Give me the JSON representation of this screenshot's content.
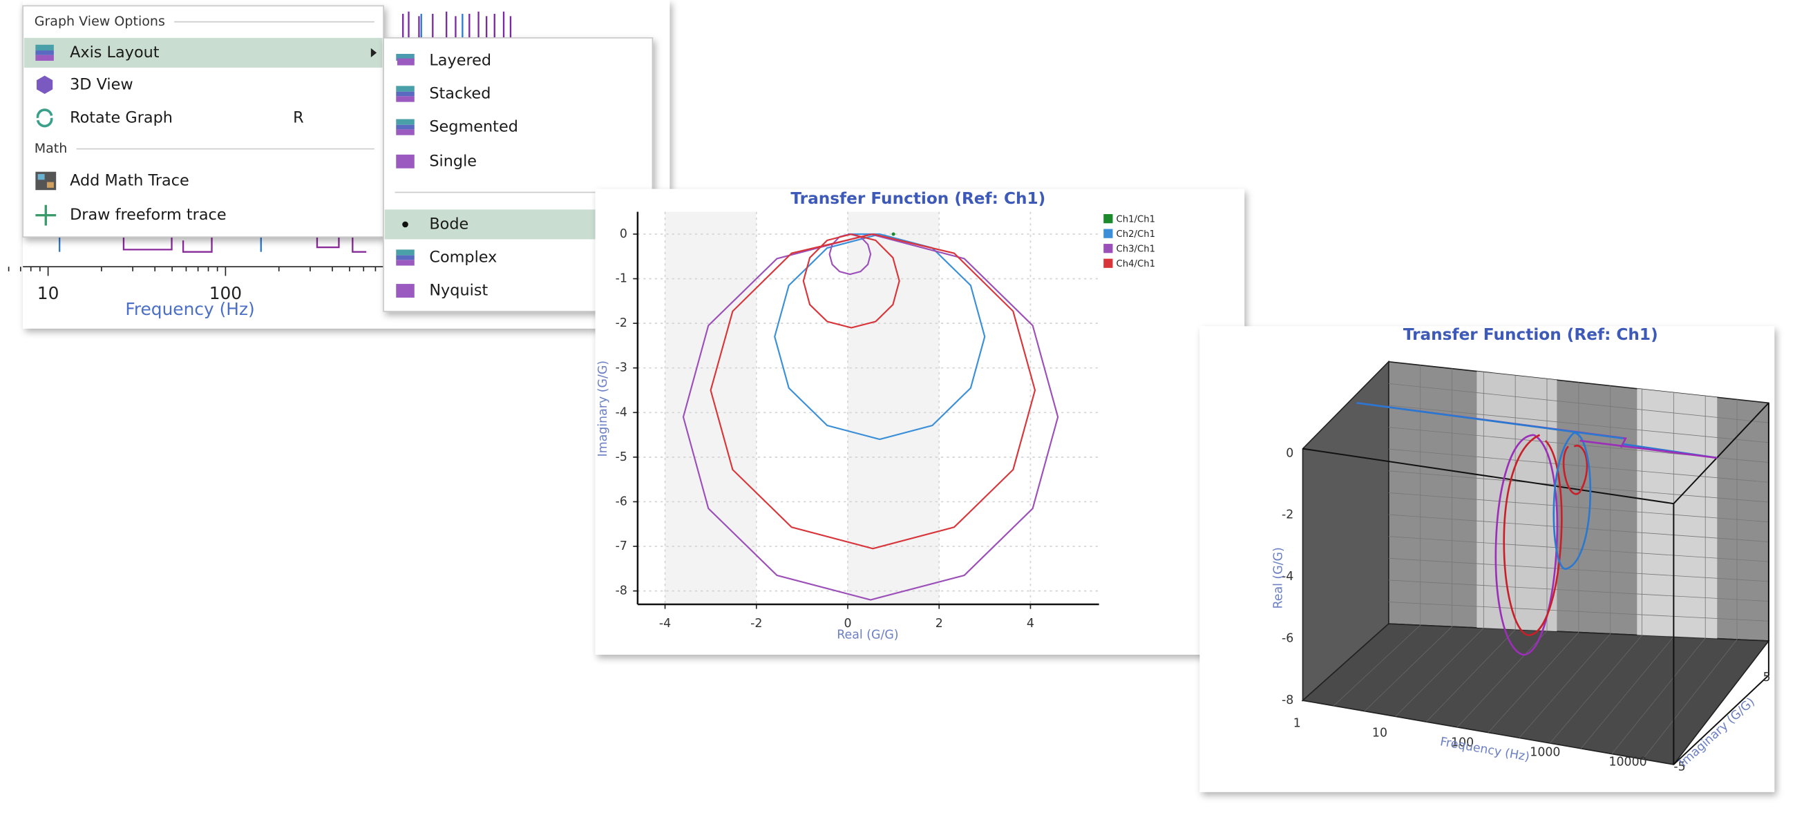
{
  "background_graph": {
    "xlabel": "Frequency (Hz)",
    "xticks": [
      10,
      100
    ]
  },
  "menu": {
    "sections": [
      {
        "header": "Graph View Options",
        "items": [
          {
            "label": "Axis Layout",
            "submenu": true,
            "highlighted": true
          },
          {
            "label": "3D View"
          },
          {
            "label": "Rotate Graph",
            "shortcut": "R"
          }
        ]
      },
      {
        "header": "Math",
        "items": [
          {
            "label": "Add Math Trace"
          },
          {
            "label": "Draw freeform trace"
          }
        ]
      }
    ]
  },
  "submenu": {
    "groups": [
      [
        {
          "label": "Layered"
        },
        {
          "label": "Stacked"
        },
        {
          "label": "Segmented"
        },
        {
          "label": "Single"
        }
      ],
      [
        {
          "label": "Bode",
          "checked": true
        },
        {
          "label": "Complex"
        },
        {
          "label": "Nyquist"
        }
      ]
    ]
  },
  "chart_data": [
    {
      "type": "line",
      "title": "Transfer Function (Ref: Ch1)",
      "xlabel": "Real (G/G)",
      "ylabel": "Imaginary (G/G)",
      "xlim": [
        -4.6,
        5.5
      ],
      "ylim": [
        -8.3,
        0.5
      ],
      "xticks": [
        -4,
        -2,
        0,
        2,
        4
      ],
      "yticks": [
        0,
        -1,
        -2,
        -3,
        -4,
        -5,
        -6,
        -7,
        -8
      ],
      "grid": true,
      "legend": "right",
      "series": [
        {
          "name": "Ch1/Ch1",
          "color": "#1a8a2a",
          "x": [
            1
          ],
          "y": [
            0
          ]
        },
        {
          "name": "Ch2/Ch1",
          "color": "#3a8fd8",
          "x": [
            0,
            0.7,
            1.85,
            2.69,
            3.0,
            2.69,
            1.85,
            0.7,
            -0.45,
            -1.29,
            -1.6,
            -1.29,
            -0.45,
            0.7
          ],
          "y": [
            0,
            0,
            -0.31,
            -1.15,
            -2.3,
            -3.45,
            -4.29,
            -4.6,
            -4.29,
            -3.45,
            -2.3,
            -1.15,
            -0.31,
            0
          ]
        },
        {
          "name": "Ch3/Ch1",
          "color": "#9b4fb8",
          "x": [
            0.05,
            0.28,
            0.44,
            0.5,
            0.44,
            0.28,
            0.05,
            -0.18,
            -0.34,
            -0.4,
            -0.34,
            -0.18,
            0.05,
            null,
            0.5,
            2.55,
            4.05,
            4.6,
            4.05,
            2.55,
            0.5,
            -1.55,
            -3.05,
            -3.6,
            -3.05,
            -1.55,
            0.5
          ],
          "y": [
            0,
            -0.06,
            -0.23,
            -0.45,
            -0.68,
            -0.84,
            -0.9,
            -0.84,
            -0.68,
            -0.45,
            -0.23,
            -0.06,
            0,
            null,
            0,
            -0.55,
            -2.05,
            -4.1,
            -6.15,
            -7.65,
            -8.2,
            -7.65,
            -6.15,
            -4.1,
            -2.05,
            -0.55,
            0
          ]
        },
        {
          "name": "Ch4/Ch1",
          "color": "#d8353a",
          "x": [
            0.08,
            0.61,
            0.99,
            1.13,
            0.99,
            0.61,
            0.08,
            -0.45,
            -0.83,
            -0.97,
            -0.83,
            -0.45,
            0.08,
            null,
            0.55,
            2.33,
            3.62,
            4.1,
            3.62,
            2.33,
            0.55,
            -1.23,
            -2.52,
            -3.0,
            -2.52,
            -1.23,
            0.55
          ],
          "y": [
            0,
            -0.14,
            -0.53,
            -1.05,
            -1.58,
            -1.96,
            -2.1,
            -1.96,
            -1.58,
            -1.05,
            -0.53,
            -0.14,
            0,
            null,
            0,
            -0.43,
            -1.73,
            -3.5,
            -5.28,
            -6.57,
            -7.05,
            -6.57,
            -5.28,
            -3.5,
            -1.73,
            -0.43,
            0
          ]
        }
      ]
    },
    {
      "type": "line3d",
      "title": "Transfer Function (Ref: Ch1)",
      "xlabel": "Frequency (Hz)",
      "ylabel": "Imaginary (G/G)",
      "zlabel": "Real (G/G)",
      "xscale": "log",
      "xlim": [
        1,
        10000
      ],
      "ylim": [
        -5,
        5
      ],
      "zlim": [
        -8,
        0
      ],
      "xticks": [
        1,
        10,
        100,
        1000,
        10000
      ],
      "yticks": [
        -5,
        5
      ],
      "zticks": [
        0,
        -2,
        -4,
        -6,
        -8
      ]
    }
  ]
}
